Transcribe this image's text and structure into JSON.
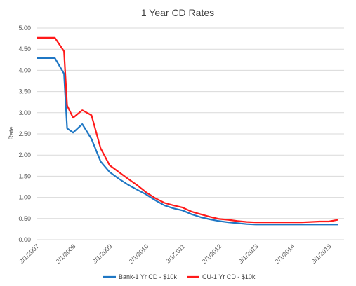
{
  "chart_data": {
    "type": "line",
    "title": "1 Year CD Rates",
    "xlabel": "",
    "ylabel": "Rate",
    "ylim": [
      0,
      5
    ],
    "yticks": [
      "0.00",
      "0.50",
      "1.00",
      "1.50",
      "2.00",
      "2.50",
      "3.00",
      "3.50",
      "4.00",
      "4.50",
      "5.00"
    ],
    "xticks": [
      "3/1/2007",
      "3/1/2008",
      "3/1/2009",
      "3/1/2010",
      "3/1/2011",
      "3/1/2012",
      "3/1/2013",
      "3/1/2014",
      "3/1/2015"
    ],
    "grid": true,
    "legend_position": "bottom",
    "x": [
      "3/1/2007",
      "6/1/2007",
      "9/1/2007",
      "12/1/2007",
      "1/1/2008",
      "3/1/2008",
      "6/1/2008",
      "9/1/2008",
      "12/1/2008",
      "3/1/2009",
      "6/1/2009",
      "9/1/2009",
      "12/1/2009",
      "3/1/2010",
      "6/1/2010",
      "9/1/2010",
      "12/1/2010",
      "3/1/2011",
      "6/1/2011",
      "9/1/2011",
      "12/1/2011",
      "3/1/2012",
      "6/1/2012",
      "9/1/2012",
      "12/1/2012",
      "3/1/2013",
      "6/1/2013",
      "9/1/2013",
      "12/1/2013",
      "3/1/2014",
      "6/1/2014",
      "9/1/2014",
      "12/1/2014",
      "3/1/2015",
      "6/1/2015"
    ],
    "series": [
      {
        "name": "Bank-1 Yr CD - $10k",
        "color": "#1f77c4",
        "values": [
          4.29,
          4.29,
          4.29,
          3.92,
          2.63,
          2.53,
          2.73,
          2.38,
          1.85,
          1.6,
          1.44,
          1.3,
          1.18,
          1.07,
          0.93,
          0.81,
          0.74,
          0.69,
          0.6,
          0.53,
          0.48,
          0.44,
          0.41,
          0.39,
          0.37,
          0.36,
          0.36,
          0.36,
          0.36,
          0.36,
          0.36,
          0.36,
          0.36,
          0.36,
          0.36
        ]
      },
      {
        "name": "CU-1 Yr CD - $10k",
        "color": "#ff1a1a",
        "values": [
          4.77,
          4.77,
          4.77,
          4.45,
          3.17,
          2.88,
          3.06,
          2.94,
          2.16,
          1.76,
          1.6,
          1.44,
          1.29,
          1.12,
          0.98,
          0.87,
          0.81,
          0.76,
          0.66,
          0.6,
          0.54,
          0.49,
          0.47,
          0.44,
          0.42,
          0.41,
          0.41,
          0.41,
          0.41,
          0.41,
          0.41,
          0.42,
          0.43,
          0.43,
          0.47
        ]
      }
    ]
  }
}
